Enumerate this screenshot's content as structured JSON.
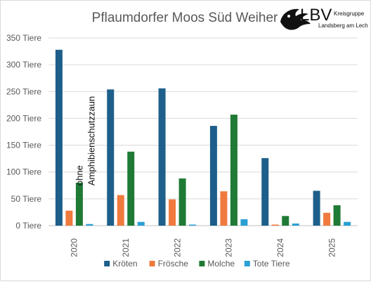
{
  "chart_data": {
    "type": "bar",
    "title": "Pflaumdorfer Moos Süd Weiher",
    "categories": [
      "2020",
      "2021",
      "2022",
      "2023",
      "2024",
      "2025"
    ],
    "series": [
      {
        "name": "Kröten",
        "color": "#1d5f8a",
        "values": [
          328,
          254,
          256,
          186,
          126,
          65
        ]
      },
      {
        "name": "Frösche",
        "color": "#f07a3e",
        "values": [
          28,
          57,
          49,
          64,
          2,
          24
        ]
      },
      {
        "name": "Molche",
        "color": "#1f7a35",
        "values": [
          80,
          138,
          88,
          207,
          18,
          38
        ]
      },
      {
        "name": "Tote Tiere",
        "color": "#2aa0d4",
        "values": [
          3,
          7,
          2,
          12,
          4,
          7
        ]
      }
    ],
    "ylim": [
      0,
      350
    ],
    "yticks": [
      {
        "value": 0,
        "label": "0 Tiere"
      },
      {
        "value": 50,
        "label": "50 Tiere"
      },
      {
        "value": 100,
        "label": "100 Tiere"
      },
      {
        "value": 150,
        "label": "150 Tiere"
      },
      {
        "value": 200,
        "label": "200 Tiere"
      },
      {
        "value": 250,
        "label": "250 Tiere"
      },
      {
        "value": 300,
        "label": "300 Tiere"
      },
      {
        "value": 350,
        "label": "350 Tiere"
      }
    ],
    "grid": true,
    "legend_position": "bottom",
    "annotation": {
      "line1": "ohne",
      "line2": "Amphibienschutzzaun",
      "category": "2020"
    }
  },
  "logo": {
    "text": "LBV",
    "sub1": "Kreisgruppe",
    "sub2": "Landsberg am Lech",
    "icon": "eagle-icon"
  }
}
